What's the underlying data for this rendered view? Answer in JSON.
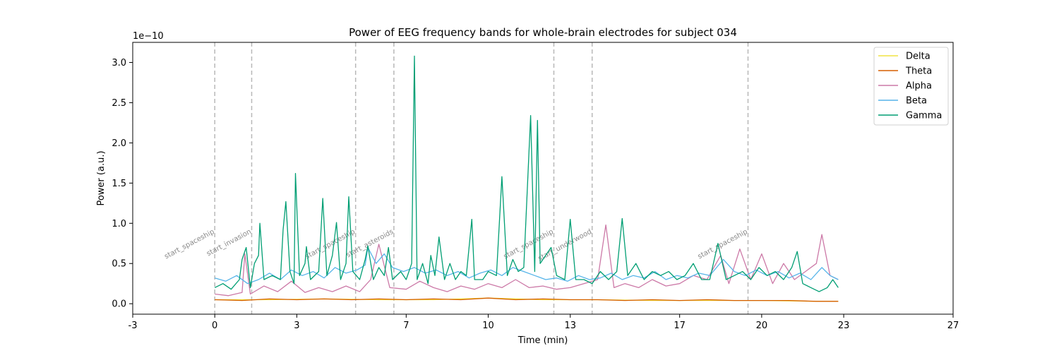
{
  "chart_data": {
    "type": "line",
    "title": "Power of EEG frequency bands for whole-brain electrodes for subject 034",
    "xlabel": "Time (min)",
    "ylabel": "Power (a.u.)",
    "y_offset_text": "1e−10",
    "xlim": [
      -3,
      27
    ],
    "ylim": [
      -0.13,
      3.25
    ],
    "x_ticks": [
      -3,
      0,
      3,
      7,
      10,
      13,
      17,
      20,
      23,
      27
    ],
    "x_tick_labels": [
      "-3",
      "0",
      "3",
      "7",
      "10",
      "13",
      "17",
      "20",
      "23",
      "27"
    ],
    "y_ticks": [
      0.0,
      0.5,
      1.0,
      1.5,
      2.0,
      2.5,
      3.0
    ],
    "y_tick_labels": [
      "0.0",
      "0.5",
      "1.0",
      "1.5",
      "2.0",
      "2.5",
      "3.0"
    ],
    "legend_position": "top-right",
    "grid": false,
    "events": [
      {
        "label": "start_spaceship",
        "x": 0.0
      },
      {
        "label": "start_invasion",
        "x": 1.35
      },
      {
        "label": "start_spaceship",
        "x": 5.15
      },
      {
        "label": "start_asteroids",
        "x": 6.55
      },
      {
        "label": "start_spaceship",
        "x": 12.4
      },
      {
        "label": "start_underwood",
        "x": 13.8
      },
      {
        "label": "start_spaceship",
        "x": 19.5
      }
    ],
    "series": [
      {
        "name": "Delta",
        "color": "#f0e442",
        "points": [
          [
            0.0,
            0.05
          ],
          [
            2.0,
            0.05
          ],
          [
            4.0,
            0.06
          ],
          [
            6.0,
            0.05
          ],
          [
            8.0,
            0.05
          ],
          [
            10.0,
            0.07
          ],
          [
            12.0,
            0.05
          ],
          [
            14.0,
            0.05
          ],
          [
            16.0,
            0.04
          ],
          [
            18.0,
            0.04
          ],
          [
            20.0,
            0.04
          ],
          [
            22.0,
            0.03
          ],
          [
            22.8,
            0.03
          ]
        ]
      },
      {
        "name": "Theta",
        "color": "#d55e00",
        "points": [
          [
            0.0,
            0.05
          ],
          [
            1.0,
            0.04
          ],
          [
            2.0,
            0.06
          ],
          [
            3.0,
            0.05
          ],
          [
            4.0,
            0.06
          ],
          [
            5.0,
            0.05
          ],
          [
            6.0,
            0.06
          ],
          [
            7.0,
            0.05
          ],
          [
            8.0,
            0.06
          ],
          [
            9.0,
            0.05
          ],
          [
            10.0,
            0.07
          ],
          [
            11.0,
            0.05
          ],
          [
            12.0,
            0.06
          ],
          [
            13.0,
            0.05
          ],
          [
            14.0,
            0.05
          ],
          [
            15.0,
            0.04
          ],
          [
            16.0,
            0.05
          ],
          [
            17.0,
            0.04
          ],
          [
            18.0,
            0.05
          ],
          [
            19.0,
            0.04
          ],
          [
            20.0,
            0.04
          ],
          [
            21.0,
            0.04
          ],
          [
            22.0,
            0.03
          ],
          [
            22.8,
            0.03
          ]
        ]
      },
      {
        "name": "Alpha",
        "color": "#cc79a7",
        "points": [
          [
            0.0,
            0.12
          ],
          [
            0.5,
            0.1
          ],
          [
            1.0,
            0.14
          ],
          [
            1.1,
            0.62
          ],
          [
            1.3,
            0.12
          ],
          [
            1.8,
            0.22
          ],
          [
            2.3,
            0.15
          ],
          [
            2.8,
            0.28
          ],
          [
            3.3,
            0.14
          ],
          [
            3.8,
            0.2
          ],
          [
            4.3,
            0.15
          ],
          [
            4.8,
            0.22
          ],
          [
            5.3,
            0.15
          ],
          [
            5.7,
            0.3
          ],
          [
            6.0,
            0.74
          ],
          [
            6.4,
            0.2
          ],
          [
            7.0,
            0.18
          ],
          [
            7.5,
            0.28
          ],
          [
            8.0,
            0.2
          ],
          [
            8.5,
            0.15
          ],
          [
            9.0,
            0.22
          ],
          [
            9.5,
            0.18
          ],
          [
            10.0,
            0.25
          ],
          [
            10.5,
            0.2
          ],
          [
            11.0,
            0.3
          ],
          [
            11.5,
            0.2
          ],
          [
            12.0,
            0.22
          ],
          [
            12.5,
            0.18
          ],
          [
            13.0,
            0.2
          ],
          [
            13.5,
            0.25
          ],
          [
            14.0,
            0.3
          ],
          [
            14.3,
            0.98
          ],
          [
            14.6,
            0.2
          ],
          [
            15.0,
            0.25
          ],
          [
            15.5,
            0.2
          ],
          [
            16.0,
            0.3
          ],
          [
            16.5,
            0.22
          ],
          [
            17.0,
            0.25
          ],
          [
            17.5,
            0.35
          ],
          [
            18.0,
            0.3
          ],
          [
            18.5,
            0.6
          ],
          [
            18.8,
            0.25
          ],
          [
            19.2,
            0.68
          ],
          [
            19.6,
            0.3
          ],
          [
            20.0,
            0.62
          ],
          [
            20.4,
            0.25
          ],
          [
            20.8,
            0.5
          ],
          [
            21.2,
            0.3
          ],
          [
            21.6,
            0.4
          ],
          [
            22.0,
            0.5
          ],
          [
            22.2,
            0.86
          ],
          [
            22.5,
            0.35
          ],
          [
            22.8,
            0.3
          ]
        ]
      },
      {
        "name": "Beta",
        "color": "#56b4e9",
        "points": [
          [
            0.0,
            0.32
          ],
          [
            0.4,
            0.28
          ],
          [
            0.8,
            0.35
          ],
          [
            1.2,
            0.25
          ],
          [
            1.6,
            0.3
          ],
          [
            2.0,
            0.38
          ],
          [
            2.4,
            0.3
          ],
          [
            2.8,
            0.42
          ],
          [
            3.2,
            0.35
          ],
          [
            3.6,
            0.4
          ],
          [
            4.0,
            0.32
          ],
          [
            4.4,
            0.45
          ],
          [
            4.8,
            0.38
          ],
          [
            5.2,
            0.42
          ],
          [
            5.5,
            0.48
          ],
          [
            5.6,
            0.7
          ],
          [
            5.9,
            0.5
          ],
          [
            6.2,
            0.62
          ],
          [
            6.5,
            0.45
          ],
          [
            6.9,
            0.4
          ],
          [
            7.3,
            0.45
          ],
          [
            7.7,
            0.38
          ],
          [
            8.1,
            0.42
          ],
          [
            8.5,
            0.35
          ],
          [
            8.9,
            0.4
          ],
          [
            9.3,
            0.32
          ],
          [
            9.7,
            0.38
          ],
          [
            10.1,
            0.42
          ],
          [
            10.5,
            0.35
          ],
          [
            10.9,
            0.45
          ],
          [
            11.3,
            0.4
          ],
          [
            11.7,
            0.35
          ],
          [
            12.1,
            0.3
          ],
          [
            12.5,
            0.32
          ],
          [
            12.9,
            0.28
          ],
          [
            13.3,
            0.35
          ],
          [
            13.7,
            0.3
          ],
          [
            14.1,
            0.32
          ],
          [
            14.5,
            0.38
          ],
          [
            14.9,
            0.3
          ],
          [
            15.3,
            0.35
          ],
          [
            15.7,
            0.32
          ],
          [
            16.1,
            0.4
          ],
          [
            16.5,
            0.3
          ],
          [
            16.9,
            0.35
          ],
          [
            17.3,
            0.32
          ],
          [
            17.7,
            0.38
          ],
          [
            18.1,
            0.35
          ],
          [
            18.6,
            0.55
          ],
          [
            19.0,
            0.4
          ],
          [
            19.4,
            0.35
          ],
          [
            19.8,
            0.42
          ],
          [
            20.2,
            0.35
          ],
          [
            20.6,
            0.4
          ],
          [
            21.0,
            0.32
          ],
          [
            21.4,
            0.38
          ],
          [
            21.8,
            0.3
          ],
          [
            22.2,
            0.45
          ],
          [
            22.5,
            0.35
          ],
          [
            22.8,
            0.3
          ]
        ]
      },
      {
        "name": "Gamma",
        "color": "#009e73",
        "points": [
          [
            0.0,
            0.2
          ],
          [
            0.3,
            0.25
          ],
          [
            0.6,
            0.18
          ],
          [
            0.9,
            0.3
          ],
          [
            1.0,
            0.55
          ],
          [
            1.15,
            0.7
          ],
          [
            1.3,
            0.2
          ],
          [
            1.45,
            0.5
          ],
          [
            1.6,
            0.6
          ],
          [
            1.65,
            1.0
          ],
          [
            1.8,
            0.3
          ],
          [
            2.1,
            0.35
          ],
          [
            2.4,
            0.3
          ],
          [
            2.5,
            0.92
          ],
          [
            2.6,
            1.27
          ],
          [
            2.75,
            0.4
          ],
          [
            2.9,
            0.25
          ],
          [
            2.95,
            1.62
          ],
          [
            3.1,
            0.35
          ],
          [
            3.3,
            0.5
          ],
          [
            3.35,
            0.71
          ],
          [
            3.5,
            0.3
          ],
          [
            3.8,
            0.4
          ],
          [
            3.95,
            1.31
          ],
          [
            4.1,
            0.35
          ],
          [
            4.3,
            0.6
          ],
          [
            4.45,
            1.01
          ],
          [
            4.6,
            0.3
          ],
          [
            4.8,
            0.5
          ],
          [
            4.9,
            1.33
          ],
          [
            5.05,
            0.4
          ],
          [
            5.3,
            0.3
          ],
          [
            5.5,
            0.55
          ],
          [
            5.6,
            0.72
          ],
          [
            5.8,
            0.3
          ],
          [
            6.0,
            0.45
          ],
          [
            6.2,
            0.35
          ],
          [
            6.35,
            0.7
          ],
          [
            6.5,
            0.3
          ],
          [
            6.8,
            0.4
          ],
          [
            7.0,
            0.3
          ],
          [
            7.2,
            0.5
          ],
          [
            7.3,
            3.08
          ],
          [
            7.4,
            0.3
          ],
          [
            7.6,
            0.5
          ],
          [
            7.8,
            0.25
          ],
          [
            7.9,
            0.6
          ],
          [
            8.05,
            0.35
          ],
          [
            8.2,
            0.83
          ],
          [
            8.4,
            0.3
          ],
          [
            8.6,
            0.5
          ],
          [
            8.8,
            0.3
          ],
          [
            9.0,
            0.4
          ],
          [
            9.2,
            0.35
          ],
          [
            9.4,
            1.05
          ],
          [
            9.5,
            0.3
          ],
          [
            9.8,
            0.3
          ],
          [
            10.0,
            0.4
          ],
          [
            10.3,
            0.35
          ],
          [
            10.5,
            1.58
          ],
          [
            10.7,
            0.35
          ],
          [
            10.9,
            0.55
          ],
          [
            11.1,
            0.4
          ],
          [
            11.3,
            0.45
          ],
          [
            11.55,
            2.34
          ],
          [
            11.7,
            0.4
          ],
          [
            11.8,
            2.28
          ],
          [
            11.9,
            0.5
          ],
          [
            12.1,
            0.6
          ],
          [
            12.3,
            0.7
          ],
          [
            12.5,
            0.35
          ],
          [
            12.8,
            0.3
          ],
          [
            13.0,
            1.05
          ],
          [
            13.2,
            0.3
          ],
          [
            13.5,
            0.3
          ],
          [
            13.8,
            0.25
          ],
          [
            14.1,
            0.4
          ],
          [
            14.4,
            0.3
          ],
          [
            14.7,
            0.4
          ],
          [
            14.9,
            1.06
          ],
          [
            15.1,
            0.35
          ],
          [
            15.4,
            0.5
          ],
          [
            15.7,
            0.3
          ],
          [
            16.0,
            0.4
          ],
          [
            16.3,
            0.35
          ],
          [
            16.6,
            0.4
          ],
          [
            16.9,
            0.3
          ],
          [
            17.2,
            0.35
          ],
          [
            17.5,
            0.5
          ],
          [
            17.8,
            0.3
          ],
          [
            18.1,
            0.3
          ],
          [
            18.4,
            0.75
          ],
          [
            18.7,
            0.3
          ],
          [
            19.0,
            0.35
          ],
          [
            19.3,
            0.4
          ],
          [
            19.6,
            0.3
          ],
          [
            19.9,
            0.45
          ],
          [
            20.2,
            0.35
          ],
          [
            20.5,
            0.4
          ],
          [
            20.8,
            0.3
          ],
          [
            21.1,
            0.45
          ],
          [
            21.3,
            0.65
          ],
          [
            21.5,
            0.25
          ],
          [
            21.8,
            0.2
          ],
          [
            22.1,
            0.15
          ],
          [
            22.4,
            0.2
          ],
          [
            22.6,
            0.3
          ],
          [
            22.8,
            0.2
          ]
        ]
      }
    ]
  }
}
